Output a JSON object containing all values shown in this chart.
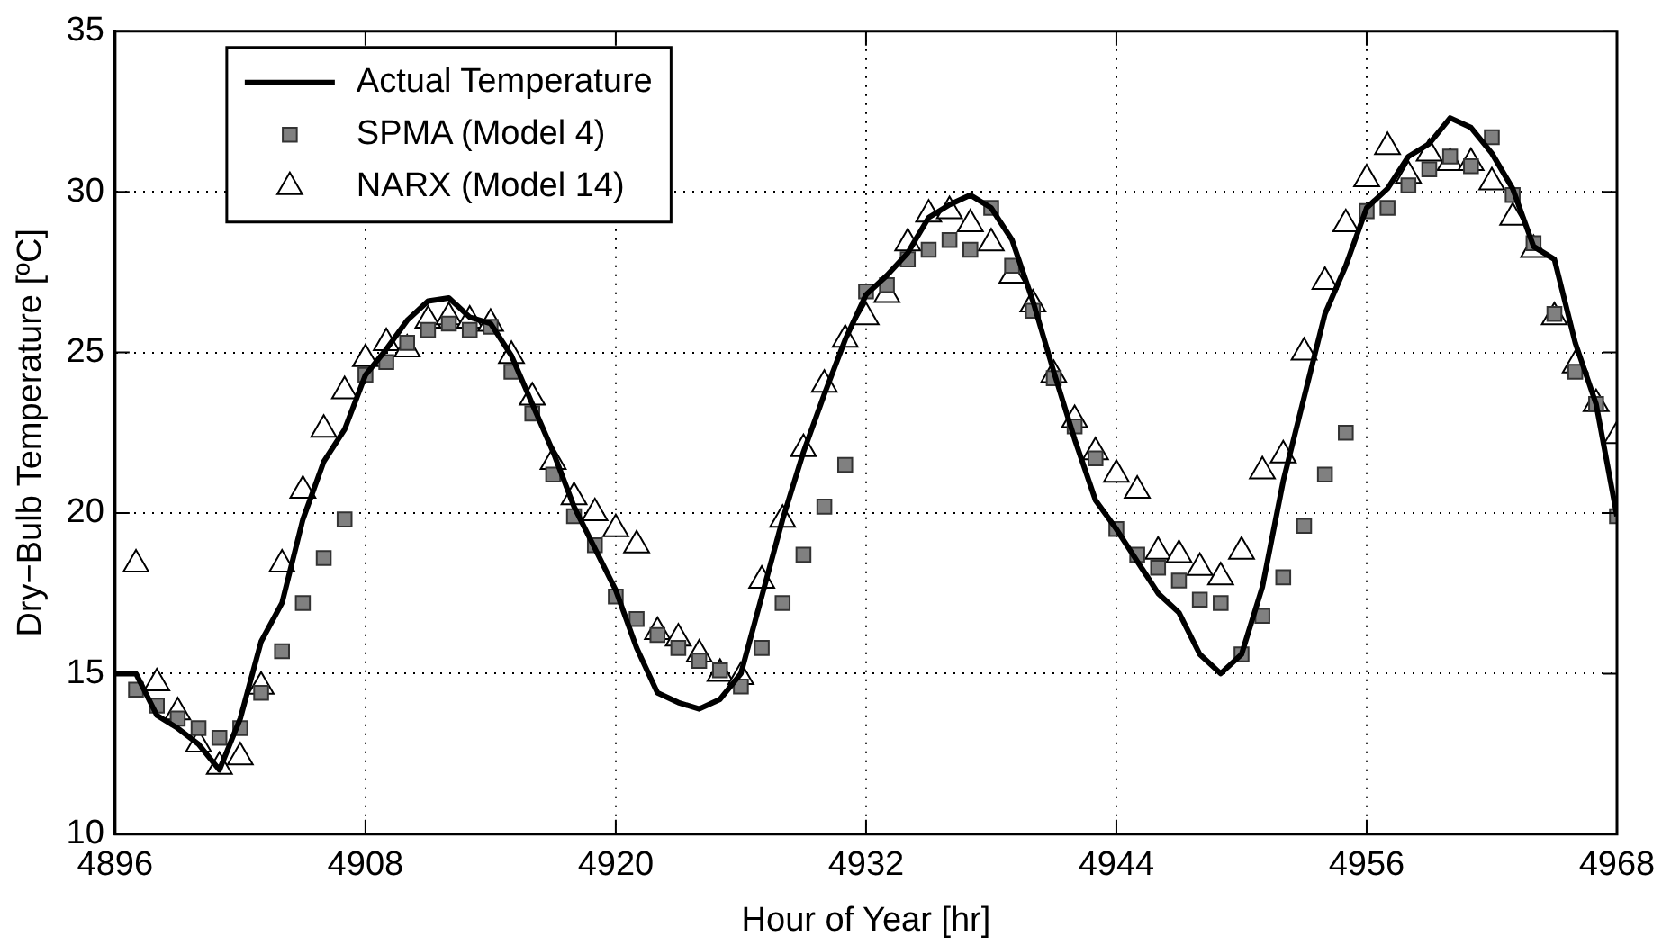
{
  "chart_data": {
    "type": "line",
    "xlabel": "Hour of Year [hr]",
    "ylabel": "Dry−Bulb Temperature [ºC]",
    "xlim": [
      4896,
      4968
    ],
    "xticks": [
      4896,
      4908,
      4920,
      4932,
      4944,
      4956,
      4968
    ],
    "ylim": [
      10,
      35
    ],
    "yticks": [
      10,
      15,
      20,
      25,
      30,
      35
    ],
    "grid": true,
    "legend": "top left",
    "series": [
      {
        "name": "Actual Temperature",
        "color": "#000000",
        "marker": "none",
        "line_style": "solid",
        "x": [
          4896,
          4897,
          4898,
          4899,
          4900,
          4901,
          4902,
          4903,
          4904,
          4905,
          4906,
          4907,
          4908,
          4909,
          4910,
          4911,
          4912,
          4913,
          4914,
          4915,
          4916,
          4917,
          4918,
          4919,
          4920,
          4921,
          4922,
          4923,
          4924,
          4925,
          4926,
          4927,
          4928,
          4929,
          4930,
          4931,
          4932,
          4933,
          4934,
          4935,
          4936,
          4937,
          4938,
          4939,
          4940,
          4941,
          4942,
          4943,
          4944,
          4945,
          4946,
          4947,
          4948,
          4949,
          4950,
          4951,
          4952,
          4953,
          4954,
          4955,
          4956,
          4957,
          4958,
          4959,
          4960,
          4961,
          4962,
          4963,
          4964,
          4965,
          4966,
          4967,
          4968
        ],
        "values": [
          15.0,
          15.0,
          13.7,
          13.3,
          12.8,
          12.0,
          13.6,
          16.0,
          17.2,
          19.8,
          21.6,
          22.6,
          24.3,
          25.1,
          26.0,
          26.6,
          26.7,
          26.1,
          25.9,
          24.9,
          23.4,
          21.9,
          20.2,
          18.9,
          17.6,
          15.8,
          14.4,
          14.1,
          13.9,
          14.2,
          15.0,
          17.4,
          19.8,
          21.9,
          23.7,
          25.4,
          26.8,
          27.4,
          28.1,
          29.2,
          29.6,
          29.9,
          29.5,
          28.5,
          26.6,
          24.4,
          22.3,
          20.4,
          19.5,
          18.5,
          17.5,
          16.9,
          15.6,
          15.0,
          15.6,
          17.7,
          21.0,
          23.6,
          26.2,
          27.7,
          29.5,
          30.1,
          31.1,
          31.5,
          32.3,
          32.0,
          31.2,
          30.1,
          28.3,
          27.9,
          25.3,
          23.4,
          19.9
        ]
      },
      {
        "name": "SPMA (Model 4)",
        "type": "scatter",
        "color": "#808080",
        "marker": "square",
        "x": [
          4897,
          4898,
          4899,
          4900,
          4901,
          4902,
          4903,
          4904,
          4905,
          4906,
          4907,
          4908,
          4909,
          4910,
          4911,
          4912,
          4913,
          4914,
          4915,
          4916,
          4917,
          4918,
          4919,
          4920,
          4921,
          4922,
          4923,
          4924,
          4925,
          4926,
          4927,
          4928,
          4929,
          4930,
          4931,
          4932,
          4933,
          4934,
          4935,
          4936,
          4937,
          4938,
          4939,
          4940,
          4941,
          4942,
          4943,
          4944,
          4945,
          4946,
          4947,
          4948,
          4949,
          4950,
          4951,
          4952,
          4953,
          4954,
          4955,
          4956,
          4957,
          4958,
          4959,
          4960,
          4961,
          4962,
          4963,
          4964,
          4965,
          4966,
          4967,
          4968
        ],
        "values": [
          14.5,
          14.0,
          13.6,
          13.3,
          13.0,
          13.3,
          14.4,
          15.7,
          17.2,
          18.6,
          19.8,
          24.3,
          24.7,
          25.3,
          25.7,
          25.9,
          25.7,
          25.8,
          24.4,
          23.1,
          21.2,
          19.9,
          19.0,
          17.4,
          16.7,
          16.2,
          15.8,
          15.4,
          15.1,
          14.6,
          15.8,
          17.2,
          18.7,
          20.2,
          21.5,
          26.9,
          27.1,
          27.9,
          28.2,
          28.5,
          28.2,
          29.5,
          27.7,
          26.3,
          24.2,
          22.7,
          21.7,
          19.5,
          18.7,
          18.3,
          17.9,
          17.3,
          17.2,
          15.6,
          16.8,
          18.0,
          19.6,
          21.2,
          22.5,
          29.4,
          29.5,
          30.2,
          30.7,
          31.1,
          30.8,
          31.7,
          29.9,
          28.4,
          26.2,
          24.4,
          23.4,
          19.9
        ]
      },
      {
        "name": "NARX (Model 14)",
        "type": "scatter",
        "color": "#000000",
        "marker": "triangle",
        "x": [
          4897,
          4898,
          4899,
          4900,
          4901,
          4902,
          4903,
          4904,
          4905,
          4906,
          4907,
          4908,
          4909,
          4910,
          4911,
          4912,
          4913,
          4914,
          4915,
          4916,
          4917,
          4918,
          4919,
          4920,
          4921,
          4922,
          4923,
          4924,
          4925,
          4926,
          4927,
          4928,
          4929,
          4930,
          4931,
          4932,
          4933,
          4934,
          4935,
          4936,
          4937,
          4938,
          4939,
          4940,
          4941,
          4942,
          4943,
          4944,
          4945,
          4946,
          4947,
          4948,
          4949,
          4950,
          4951,
          4952,
          4953,
          4954,
          4955,
          4956,
          4957,
          4958,
          4959,
          4960,
          4961,
          4962,
          4963,
          4964,
          4965,
          4966,
          4967,
          4968
        ],
        "values": [
          18.4,
          14.7,
          13.8,
          12.8,
          12.1,
          12.4,
          14.6,
          18.4,
          20.7,
          22.6,
          23.8,
          24.8,
          25.3,
          25.1,
          26.0,
          26.1,
          26.0,
          25.9,
          24.9,
          23.6,
          21.6,
          20.5,
          20.0,
          19.5,
          19.0,
          16.3,
          16.1,
          15.6,
          15.0,
          14.9,
          17.9,
          19.8,
          22.0,
          24.0,
          25.4,
          26.1,
          26.8,
          28.4,
          29.3,
          29.4,
          29.0,
          28.4,
          27.4,
          26.5,
          24.3,
          22.9,
          21.9,
          21.2,
          20.7,
          18.8,
          18.7,
          18.3,
          18.0,
          18.8,
          21.3,
          21.8,
          25.0,
          27.2,
          29.0,
          30.4,
          31.4,
          30.5,
          31.2,
          30.9,
          30.9,
          30.3,
          29.2,
          28.2,
          26.1,
          24.6,
          23.4,
          22.4
        ]
      }
    ]
  }
}
